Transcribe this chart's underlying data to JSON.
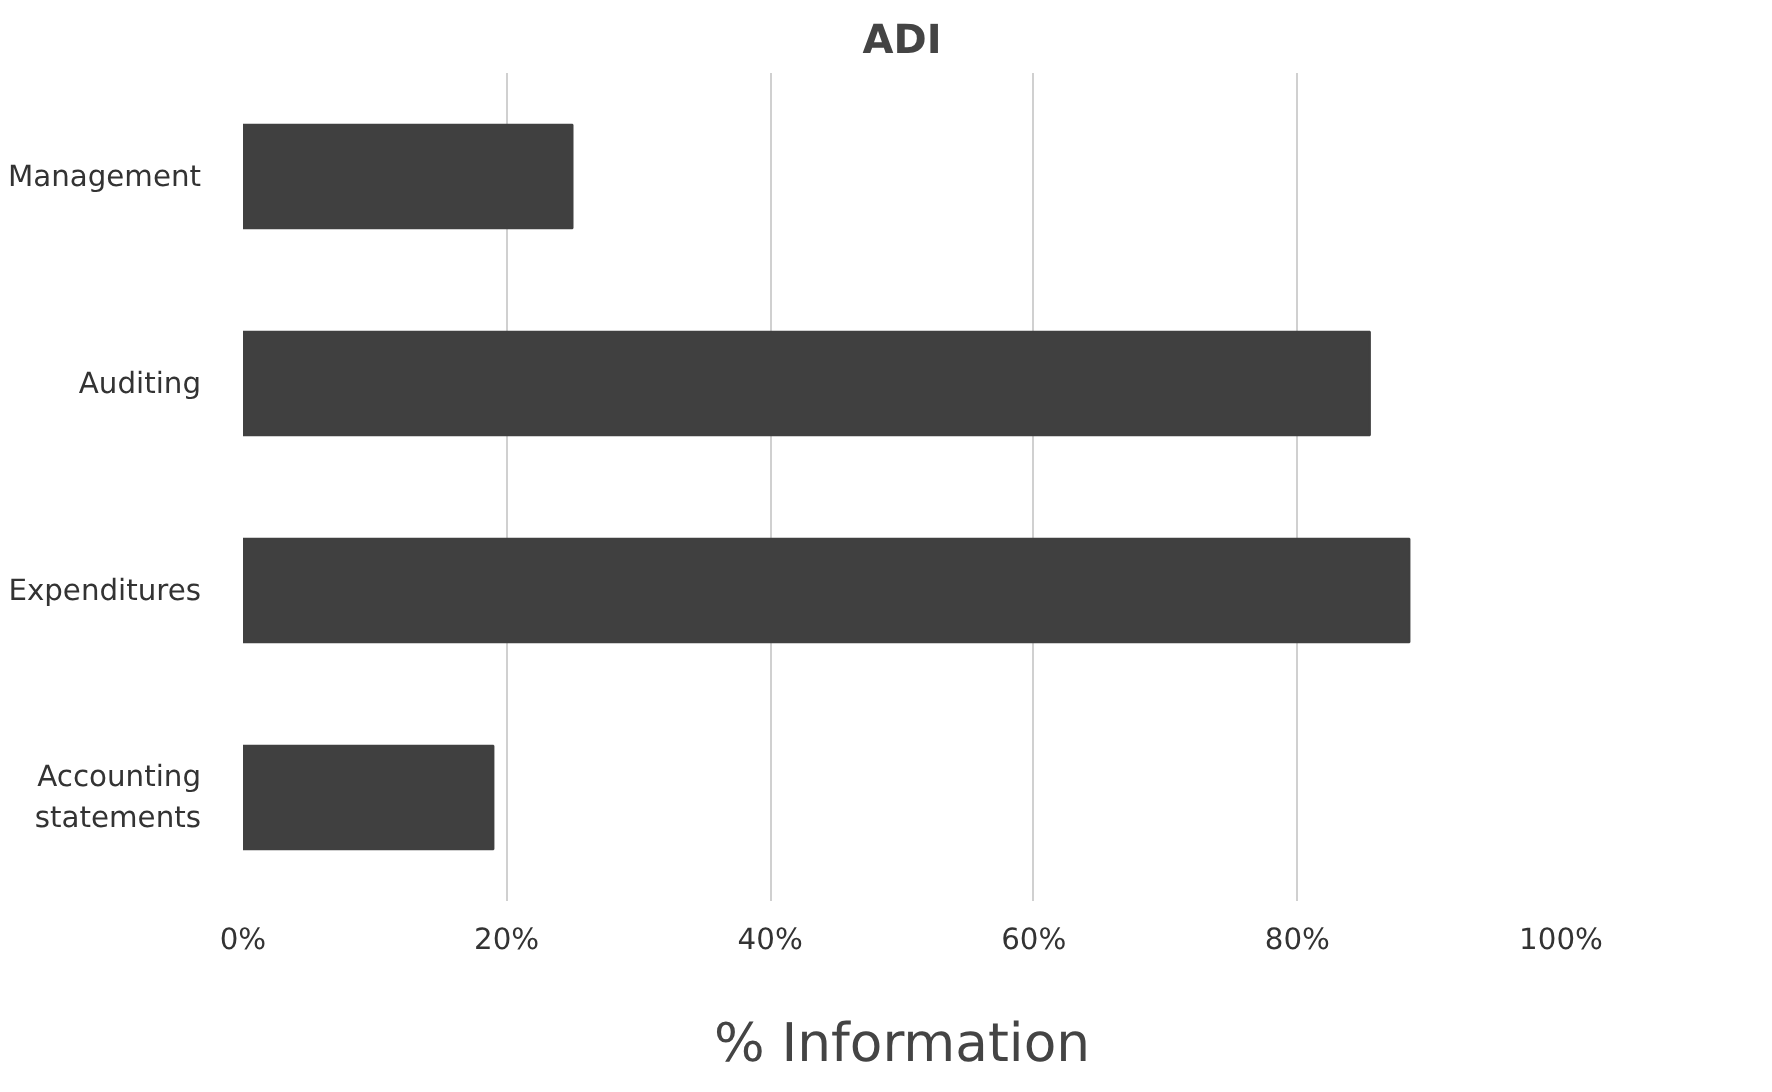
{
  "chart_data": {
    "type": "bar",
    "orientation": "horizontal",
    "title": "ADI",
    "xlabel": "% Information",
    "categories": [
      "Management",
      "Auditing",
      "Expenditures",
      "Accounting statements"
    ],
    "values": [
      25,
      85.5,
      88.5,
      19
    ],
    "color": "#404040",
    "xlim": [
      0,
      100
    ],
    "xticks": [
      {
        "value": 0,
        "label": "0%"
      },
      {
        "value": 20,
        "label": "20%"
      },
      {
        "value": 40,
        "label": "40%"
      },
      {
        "value": 60,
        "label": "60%"
      },
      {
        "value": 80,
        "label": "80%"
      },
      {
        "value": 100,
        "label": "100%"
      }
    ],
    "grid": "x"
  }
}
